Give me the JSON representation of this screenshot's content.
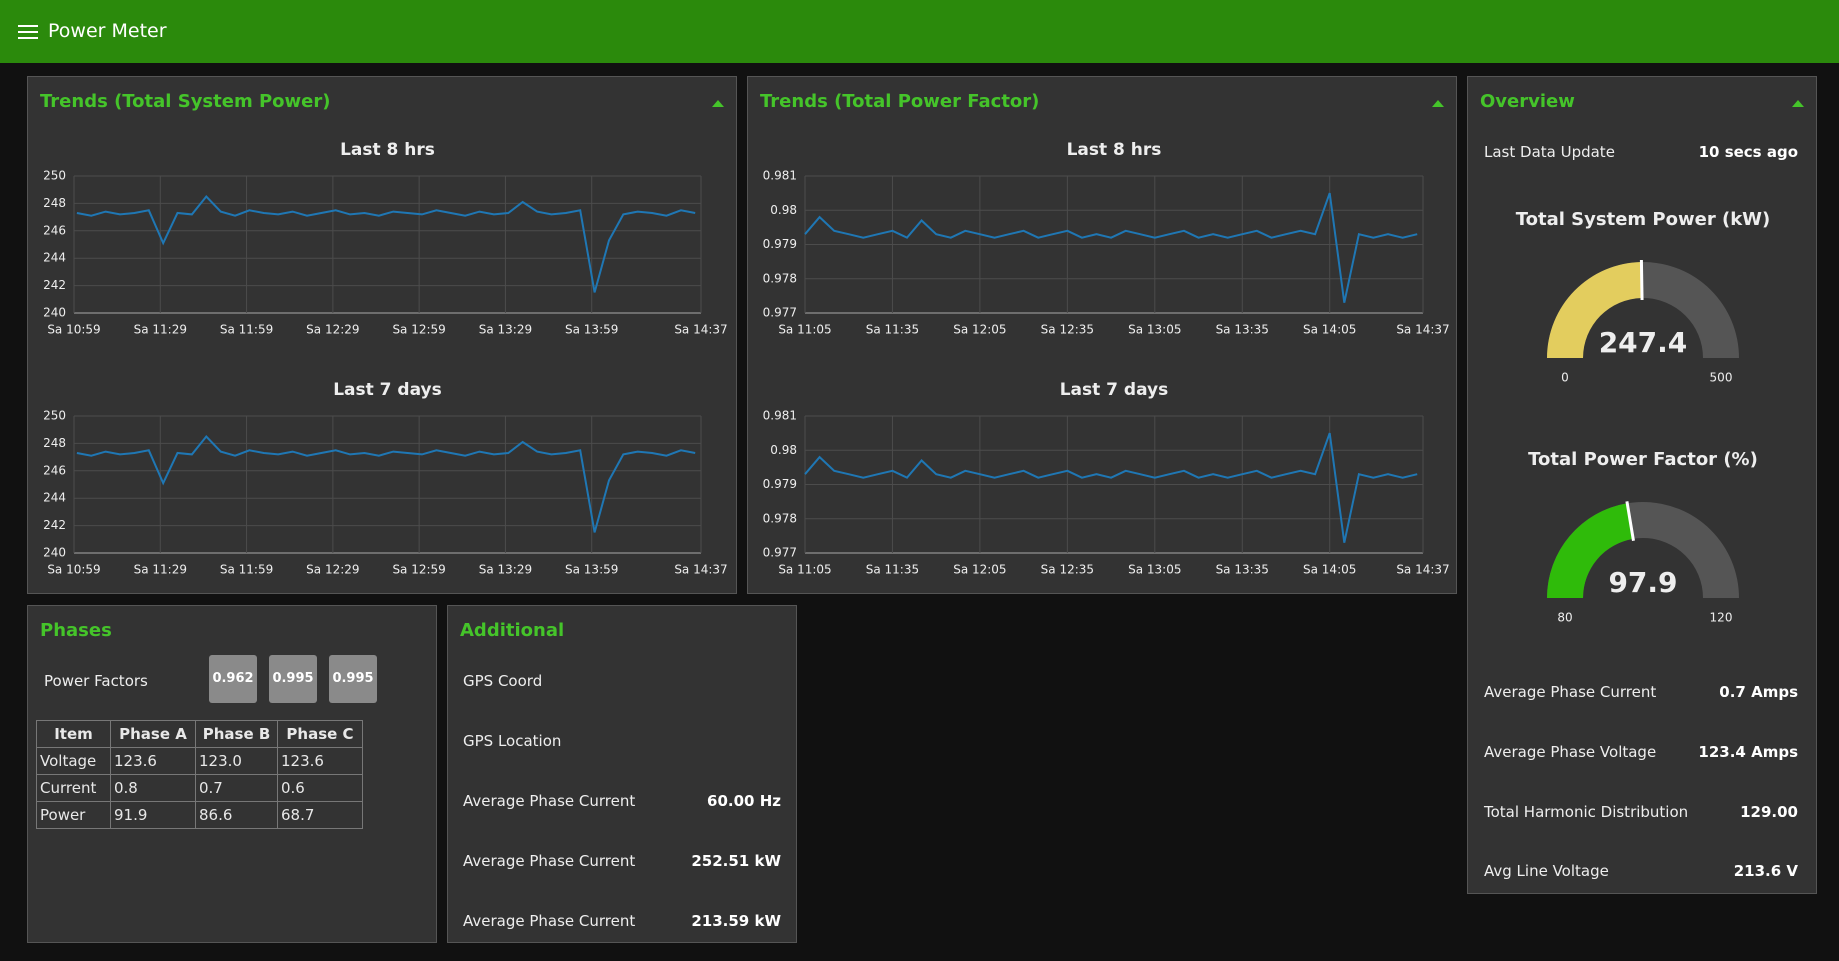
{
  "header": {
    "title": "Power Meter"
  },
  "panels": {
    "trends_power": "Trends (Total System Power)",
    "trends_pf": "Trends (Total Power Factor)",
    "overview": "Overview",
    "phases": "Phases",
    "additional": "Additional"
  },
  "chart_data": [
    {
      "type": "line",
      "title": "Last 8 hrs",
      "color": "#1f77b4",
      "grid": true,
      "x": [
        660,
        665,
        670,
        675,
        680,
        685,
        690,
        695,
        700,
        705,
        710,
        715,
        720,
        725,
        730,
        735,
        740,
        745,
        750,
        755,
        760,
        765,
        770,
        775,
        780,
        785,
        790,
        795,
        800,
        805,
        810,
        815,
        820,
        825,
        830,
        835,
        840,
        845,
        850,
        855,
        860,
        865,
        870,
        875
      ],
      "values": [
        247.3,
        247.1,
        247.4,
        247.2,
        247.3,
        247.5,
        245.1,
        247.3,
        247.2,
        248.5,
        247.4,
        247.1,
        247.5,
        247.3,
        247.2,
        247.4,
        247.1,
        247.3,
        247.5,
        247.2,
        247.3,
        247.1,
        247.4,
        247.3,
        247.2,
        247.5,
        247.3,
        247.1,
        247.4,
        247.2,
        247.3,
        248.1,
        247.4,
        247.2,
        247.3,
        247.5,
        241.5,
        245.3,
        247.2,
        247.4,
        247.3,
        247.1,
        247.5,
        247.3
      ],
      "xlim": [
        659,
        877
      ],
      "ylim": [
        240,
        250
      ],
      "yticks": [
        240,
        242,
        244,
        246,
        248,
        250
      ],
      "xticks": [
        {
          "value": 659,
          "label": "Sa 10:59"
        },
        {
          "value": 689,
          "label": "Sa 11:29"
        },
        {
          "value": 719,
          "label": "Sa 11:59"
        },
        {
          "value": 749,
          "label": "Sa 12:29"
        },
        {
          "value": 779,
          "label": "Sa 12:59"
        },
        {
          "value": 809,
          "label": "Sa 13:29"
        },
        {
          "value": 839,
          "label": "Sa 13:59"
        },
        {
          "value": 877,
          "label": "Sa 14:37"
        }
      ]
    },
    {
      "type": "line",
      "title": "Last 7 days",
      "color": "#1f77b4",
      "grid": true,
      "x": [
        660,
        665,
        670,
        675,
        680,
        685,
        690,
        695,
        700,
        705,
        710,
        715,
        720,
        725,
        730,
        735,
        740,
        745,
        750,
        755,
        760,
        765,
        770,
        775,
        780,
        785,
        790,
        795,
        800,
        805,
        810,
        815,
        820,
        825,
        830,
        835,
        840,
        845,
        850,
        855,
        860,
        865,
        870,
        875
      ],
      "values": [
        247.3,
        247.1,
        247.4,
        247.2,
        247.3,
        247.5,
        245.1,
        247.3,
        247.2,
        248.5,
        247.4,
        247.1,
        247.5,
        247.3,
        247.2,
        247.4,
        247.1,
        247.3,
        247.5,
        247.2,
        247.3,
        247.1,
        247.4,
        247.3,
        247.2,
        247.5,
        247.3,
        247.1,
        247.4,
        247.2,
        247.3,
        248.1,
        247.4,
        247.2,
        247.3,
        247.5,
        241.5,
        245.3,
        247.2,
        247.4,
        247.3,
        247.1,
        247.5,
        247.3
      ],
      "xlim": [
        659,
        877
      ],
      "ylim": [
        240,
        250
      ],
      "yticks": [
        240,
        242,
        244,
        246,
        248,
        250
      ],
      "xticks": [
        {
          "value": 659,
          "label": "Sa 10:59"
        },
        {
          "value": 689,
          "label": "Sa 11:29"
        },
        {
          "value": 719,
          "label": "Sa 11:59"
        },
        {
          "value": 749,
          "label": "Sa 12:29"
        },
        {
          "value": 779,
          "label": "Sa 12:59"
        },
        {
          "value": 809,
          "label": "Sa 13:29"
        },
        {
          "value": 839,
          "label": "Sa 13:59"
        },
        {
          "value": 877,
          "label": "Sa 14:37"
        }
      ]
    },
    {
      "type": "line",
      "title": "Last 8 hrs",
      "color": "#1f77b4",
      "grid": true,
      "x": [
        665,
        670,
        675,
        680,
        685,
        690,
        695,
        700,
        705,
        710,
        715,
        720,
        725,
        730,
        735,
        740,
        745,
        750,
        755,
        760,
        765,
        770,
        775,
        780,
        785,
        790,
        795,
        800,
        805,
        810,
        815,
        820,
        825,
        830,
        835,
        840,
        845,
        850,
        855,
        860,
        865,
        870,
        875
      ],
      "values": [
        0.9793,
        0.9798,
        0.9794,
        0.9793,
        0.9792,
        0.9793,
        0.9794,
        0.9792,
        0.9797,
        0.9793,
        0.9792,
        0.9794,
        0.9793,
        0.9792,
        0.9793,
        0.9794,
        0.9792,
        0.9793,
        0.9794,
        0.9792,
        0.9793,
        0.9792,
        0.9794,
        0.9793,
        0.9792,
        0.9793,
        0.9794,
        0.9792,
        0.9793,
        0.9792,
        0.9793,
        0.9794,
        0.9792,
        0.9793,
        0.9794,
        0.9793,
        0.9805,
        0.9773,
        0.9793,
        0.9792,
        0.9793,
        0.9792,
        0.9793
      ],
      "xlim": [
        665,
        877
      ],
      "ylim": [
        0.977,
        0.981
      ],
      "yticks": [
        0.977,
        0.978,
        0.979,
        0.98,
        0.981
      ],
      "xticks": [
        {
          "value": 665,
          "label": "Sa 11:05"
        },
        {
          "value": 695,
          "label": "Sa 11:35"
        },
        {
          "value": 725,
          "label": "Sa 12:05"
        },
        {
          "value": 755,
          "label": "Sa 12:35"
        },
        {
          "value": 785,
          "label": "Sa 13:05"
        },
        {
          "value": 815,
          "label": "Sa 13:35"
        },
        {
          "value": 845,
          "label": "Sa 14:05"
        },
        {
          "value": 877,
          "label": "Sa 14:37"
        }
      ]
    },
    {
      "type": "line",
      "title": "Last 7 days",
      "color": "#1f77b4",
      "grid": true,
      "x": [
        665,
        670,
        675,
        680,
        685,
        690,
        695,
        700,
        705,
        710,
        715,
        720,
        725,
        730,
        735,
        740,
        745,
        750,
        755,
        760,
        765,
        770,
        775,
        780,
        785,
        790,
        795,
        800,
        805,
        810,
        815,
        820,
        825,
        830,
        835,
        840,
        845,
        850,
        855,
        860,
        865,
        870,
        875
      ],
      "values": [
        0.9793,
        0.9798,
        0.9794,
        0.9793,
        0.9792,
        0.9793,
        0.9794,
        0.9792,
        0.9797,
        0.9793,
        0.9792,
        0.9794,
        0.9793,
        0.9792,
        0.9793,
        0.9794,
        0.9792,
        0.9793,
        0.9794,
        0.9792,
        0.9793,
        0.9792,
        0.9794,
        0.9793,
        0.9792,
        0.9793,
        0.9794,
        0.9792,
        0.9793,
        0.9792,
        0.9793,
        0.9794,
        0.9792,
        0.9793,
        0.9794,
        0.9793,
        0.9805,
        0.9773,
        0.9793,
        0.9792,
        0.9793,
        0.9792,
        0.9793
      ],
      "xlim": [
        665,
        877
      ],
      "ylim": [
        0.977,
        0.981
      ],
      "yticks": [
        0.977,
        0.978,
        0.979,
        0.98,
        0.981
      ],
      "xticks": [
        {
          "value": 665,
          "label": "Sa 11:05"
        },
        {
          "value": 695,
          "label": "Sa 11:35"
        },
        {
          "value": 725,
          "label": "Sa 12:05"
        },
        {
          "value": 755,
          "label": "Sa 12:35"
        },
        {
          "value": 785,
          "label": "Sa 13:05"
        },
        {
          "value": 815,
          "label": "Sa 13:35"
        },
        {
          "value": 845,
          "label": "Sa 14:05"
        },
        {
          "value": 877,
          "label": "Sa 14:37"
        }
      ]
    },
    {
      "type": "gauge",
      "title": "Total System Power (kW)",
      "value": 247.4,
      "color": "#e3cd5e",
      "ylim": [
        0,
        500
      ],
      "yticks": [
        0,
        500
      ]
    },
    {
      "type": "gauge",
      "title": "Total Power Factor (%)",
      "value": 97.9,
      "color": "#2fbb0a",
      "ylim": [
        80,
        120
      ],
      "yticks": [
        80,
        120
      ]
    }
  ],
  "overview": {
    "last_update": {
      "label": "Last Data Update",
      "value": "10 secs ago"
    },
    "rows": [
      {
        "label": "Average Phase Current",
        "value": "0.7 Amps"
      },
      {
        "label": "Average Phase Voltage",
        "value": "123.4 Amps"
      },
      {
        "label": "Total Harmonic Distribution",
        "value": "129.00"
      },
      {
        "label": "Avg Line Voltage",
        "value": "213.6 V"
      }
    ]
  },
  "phases": {
    "power_factors_label": "Power Factors",
    "power_factors": [
      0.962,
      0.995,
      0.995
    ],
    "table": {
      "header": [
        "Item",
        "Phase A",
        "Phase B",
        "Phase C"
      ],
      "rows": [
        [
          "Voltage",
          "123.6",
          "123.0",
          "123.6"
        ],
        [
          "Current",
          "0.8",
          "0.7",
          "0.6"
        ],
        [
          "Power",
          "91.9",
          "86.6",
          "68.7"
        ]
      ]
    }
  },
  "additional": {
    "rows": [
      {
        "label": "GPS Coord"
      },
      {
        "label": "GPS Location"
      },
      {
        "label": "Average Phase Current",
        "value": "60.00 Hz"
      },
      {
        "label": "Average Phase Current",
        "value": "252.51 kW"
      },
      {
        "label": "Average Phase Current",
        "value": "213.59 kW"
      }
    ]
  }
}
